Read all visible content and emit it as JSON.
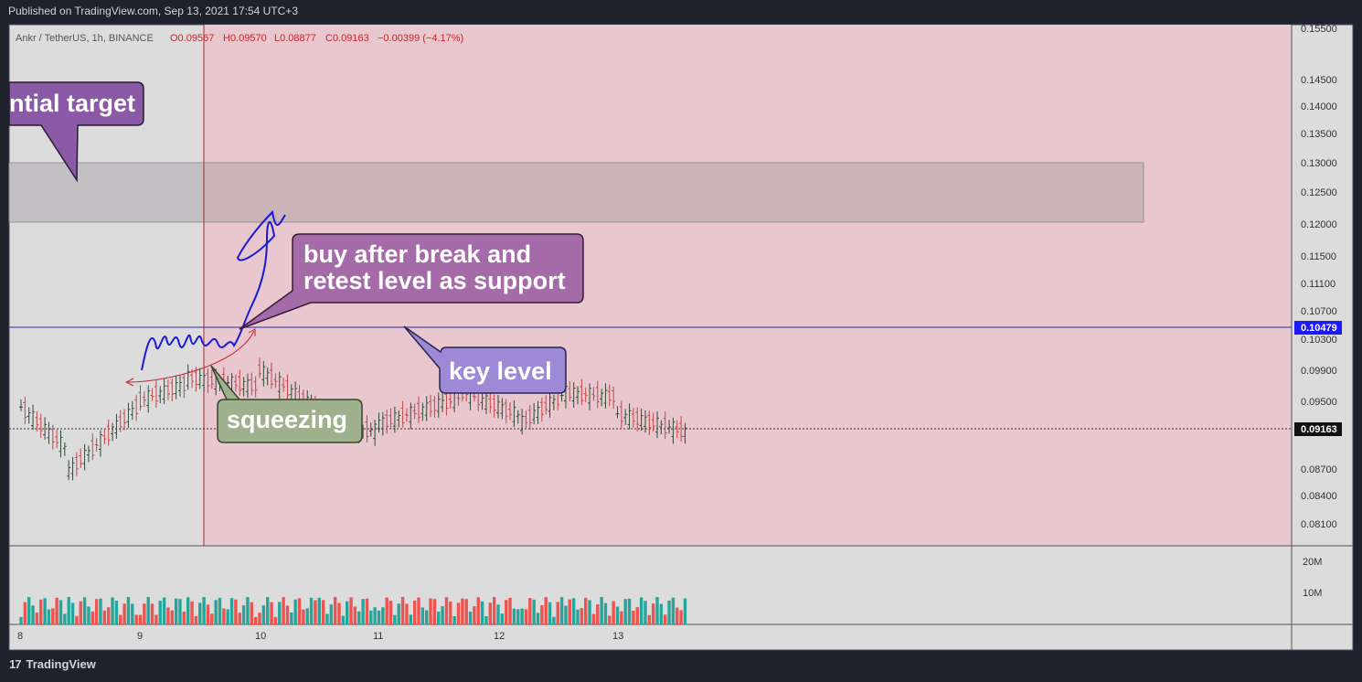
{
  "header": {
    "published": "Published on TradingView.com, Sep 13, 2021 17:54 UTC+3"
  },
  "legend": {
    "symbol": "Ankr / TetherUS, 1h, BINANCE",
    "open": "O0.09567",
    "high": "H0.09570",
    "low": "L0.08877",
    "close": "C0.09163",
    "change": "−0.00399 (−4.17%)"
  },
  "footer": {
    "logo": "17",
    "brand": "TradingView"
  },
  "annotations": {
    "target": "ntial target",
    "buy": [
      "buy after break and",
      "retest level as support"
    ],
    "key": "key level",
    "squeeze": "squeezing"
  },
  "price_badges": {
    "key_level": "0.10479",
    "last": "0.09163"
  },
  "colors": {
    "up": "#26a69a",
    "down": "#ef5350",
    "bar_up": "#2e4d34",
    "bar_down": "#c2454a",
    "zone": "#e8c8ce",
    "target_box": "#c9b6bd",
    "key_line": "#2a2aa8",
    "callout_purple": "#8a5aa6",
    "callout_violet": "#9d8ad6",
    "callout_green": "#9fb08c"
  },
  "chart_data": {
    "type": "candlestick",
    "timeframe": "1h",
    "y_ticks": [
      "0.15500",
      "0.14500",
      "0.14000",
      "0.13500",
      "0.13000",
      "0.12500",
      "0.12000",
      "0.11500",
      "0.11100",
      "0.10700",
      "0.10300",
      "0.09900",
      "0.09500",
      "0.08700",
      "0.08400",
      "0.08100"
    ],
    "x_ticks": [
      "8",
      "9",
      "10",
      "11",
      "12",
      "13"
    ],
    "volume_ticks": [
      "20M",
      "10M"
    ],
    "ylim": [
      0.079,
      0.156
    ],
    "key_level": 0.10479,
    "last_price": 0.09163,
    "target_zone": [
      0.1205,
      0.1303
    ],
    "candles_sample": [
      {
        "day": "8",
        "o": 0.1008,
        "h": 0.1015,
        "l": 0.0985,
        "c": 0.0995
      },
      {
        "day": "8.4",
        "o": 0.093,
        "h": 0.0955,
        "l": 0.0882,
        "c": 0.09
      },
      {
        "day": "9",
        "o": 0.1,
        "h": 0.1012,
        "l": 0.0985,
        "c": 0.1005
      },
      {
        "day": "9.4",
        "o": 0.103,
        "h": 0.1048,
        "l": 0.1012,
        "c": 0.1038
      },
      {
        "day": "10",
        "o": 0.1025,
        "h": 0.1058,
        "l": 0.101,
        "c": 0.105
      },
      {
        "day": "10.5",
        "o": 0.099,
        "h": 0.1005,
        "l": 0.0955,
        "c": 0.0965
      },
      {
        "day": "11",
        "o": 0.096,
        "h": 0.0978,
        "l": 0.0945,
        "c": 0.097
      },
      {
        "day": "11.7",
        "o": 0.101,
        "h": 0.1025,
        "l": 0.0995,
        "c": 0.1018
      },
      {
        "day": "12.2",
        "o": 0.098,
        "h": 0.0995,
        "l": 0.0962,
        "c": 0.0972
      },
      {
        "day": "12.6",
        "o": 0.102,
        "h": 0.1028,
        "l": 0.1005,
        "c": 0.1015
      },
      {
        "day": "13",
        "o": 0.101,
        "h": 0.1018,
        "l": 0.0975,
        "c": 0.0985
      },
      {
        "day": "13.6",
        "o": 0.0957,
        "h": 0.0957,
        "l": 0.0888,
        "c": 0.0916
      }
    ]
  }
}
